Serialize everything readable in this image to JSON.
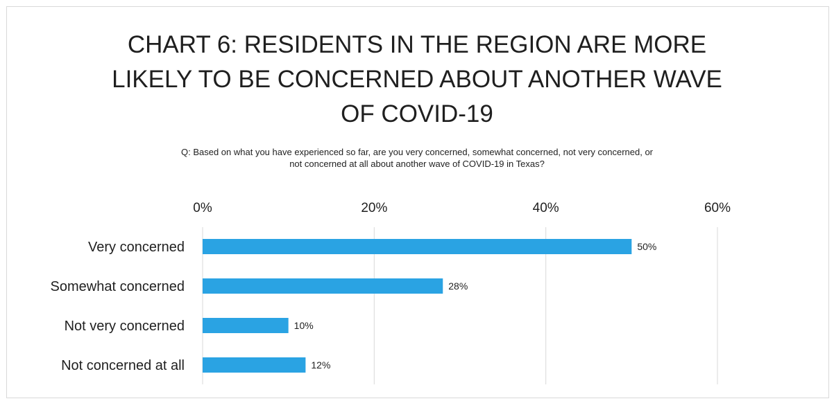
{
  "chart_data": {
    "type": "bar",
    "orientation": "horizontal",
    "title_lines": [
      "CHART 6: RESIDENTS IN THE REGION ARE MORE",
      "LIKELY TO BE CONCERNED ABOUT ANOTHER WAVE",
      "OF COVID-19"
    ],
    "subtitle_lines": [
      "Q: Based on what you have experienced so far, are you very concerned, somewhat concerned, not very concerned, or",
      "not concerned at all about another wave of COVID-19 in Texas?"
    ],
    "categories": [
      "Very concerned",
      "Somewhat concerned",
      "Not very concerned",
      "Not concerned at all"
    ],
    "values": [
      50,
      28,
      10,
      12
    ],
    "data_labels": [
      "50%",
      "28%",
      "10%",
      "12%"
    ],
    "xlim": [
      0,
      60
    ],
    "ticks": [
      0,
      20,
      40,
      60
    ],
    "tick_labels": [
      "0%",
      "20%",
      "40%",
      "60%"
    ],
    "axis_position": "top",
    "grid": true,
    "bar_color": "#2aa3e3",
    "grid_color": "#d9d9d9"
  }
}
